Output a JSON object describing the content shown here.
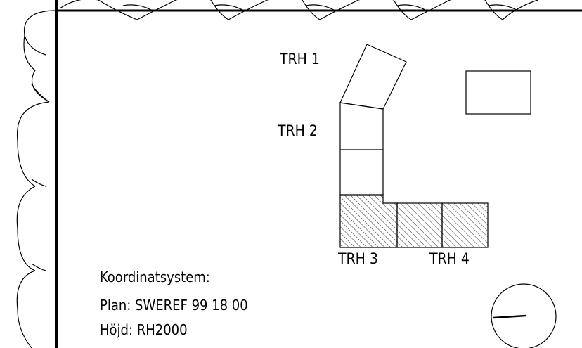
{
  "buildings": [
    {
      "label": "TRH 1"
    },
    {
      "label": "TRH 2"
    },
    {
      "label": "TRH 3"
    },
    {
      "label": "TRH 4"
    }
  ],
  "coordinate_system": {
    "title": "Koordinatsystem:",
    "plan": "Plan: SWEREF 99 18 00",
    "height": "Höjd: RH2000"
  }
}
